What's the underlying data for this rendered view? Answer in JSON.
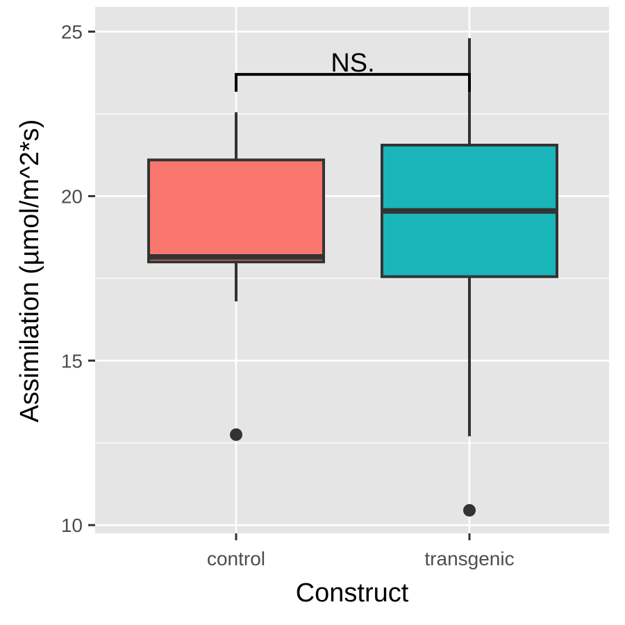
{
  "chart_data": {
    "type": "boxplot",
    "title": "",
    "xlabel": "Construct",
    "ylabel": "Assimilation (µmol/m^2*s)",
    "ylim": [
      9.75,
      25.75
    ],
    "yticks": [
      10,
      15,
      20,
      25
    ],
    "grid": true,
    "legend": "none",
    "panel_background": "#e5e5e5",
    "categories": [
      "control",
      "transgenic"
    ],
    "boxes": [
      {
        "category": "control",
        "fill": "#f8766d",
        "whisker_low": 16.8,
        "q1": 18.0,
        "median": 18.15,
        "q3": 21.1,
        "whisker_high": 22.55,
        "outliers": [
          12.75
        ]
      },
      {
        "category": "transgenic",
        "fill": "#19b5b9",
        "whisker_low": 12.7,
        "q1": 17.55,
        "median": 19.55,
        "q3": 21.55,
        "whisker_high": 24.8,
        "outliers": [
          10.45
        ]
      }
    ],
    "annotation": {
      "text": "NS.",
      "from": "control",
      "to": "transgenic",
      "bracket_y": 23.7,
      "tip_y": 23.3
    }
  }
}
